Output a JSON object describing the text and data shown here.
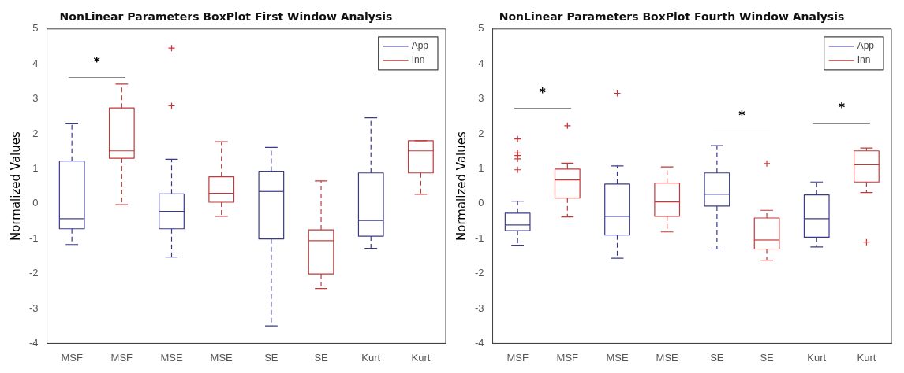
{
  "chart_data": [
    {
      "type": "box",
      "title": "NonLinear Parameters BoxPlot First Window Analysis",
      "ylabel": "Normalized Values",
      "categories": [
        "MSF",
        "MSF",
        "MSE",
        "MSE",
        "SE",
        "SE",
        "Kurt",
        "Kurt"
      ],
      "series": [
        {
          "name": "App",
          "color": "#3a3a8c",
          "boxes": [
            {
              "low": -1.17,
              "q1": -0.72,
              "median": -0.43,
              "q3": 1.22,
              "high": 2.3
            },
            null,
            {
              "low": -1.53,
              "q1": -0.72,
              "median": -0.22,
              "q3": 0.28,
              "high": 1.27,
              "outliers": [
                4.45,
                2.8
              ]
            },
            null,
            {
              "low": -3.5,
              "q1": -1.01,
              "median": 0.35,
              "q3": 0.93,
              "high": 1.61
            },
            null,
            {
              "low": -1.28,
              "q1": -0.93,
              "median": -0.48,
              "q3": 0.88,
              "high": 2.46
            },
            null
          ]
        },
        {
          "name": "Inn",
          "color": "#c03a3a",
          "boxes": [
            null,
            {
              "low": -0.03,
              "q1": 1.3,
              "median": 1.51,
              "q3": 2.74,
              "high": 3.42
            },
            null,
            {
              "low": -0.36,
              "q1": 0.04,
              "median": 0.3,
              "q3": 0.77,
              "high": 1.77
            },
            null,
            {
              "low": -2.43,
              "q1": -2.01,
              "median": -1.06,
              "q3": -0.75,
              "high": 0.65
            },
            null,
            {
              "low": 0.27,
              "q1": 0.88,
              "median": 1.51,
              "q3": 1.8,
              "high": 1.8
            }
          ]
        }
      ],
      "annotations": [
        "*"
      ],
      "ylim": [
        -4,
        5
      ],
      "yticks": [
        -4,
        -3,
        -2,
        -1,
        0,
        1,
        2,
        3,
        4,
        5
      ],
      "grid": false,
      "legend": "top right"
    },
    {
      "type": "box",
      "title": "NonLinear Parameters BoxPlot Fourth Window Analysis",
      "ylabel": "Normalized Values",
      "categories": [
        "MSF",
        "MSF",
        "MSE",
        "MSE",
        "SE",
        "SE",
        "Kurt",
        "Kurt"
      ],
      "series": [
        {
          "name": "App",
          "color": "#3a3a8c",
          "boxes": [
            {
              "low": -1.19,
              "q1": -0.77,
              "median": -0.61,
              "q3": -0.27,
              "high": 0.07,
              "outliers": [
                1.85,
                1.45,
                1.38,
                1.28,
                0.97
              ]
            },
            null,
            {
              "low": -1.56,
              "q1": -0.9,
              "median": -0.36,
              "q3": 0.56,
              "high": 1.08,
              "outliers": [
                3.16
              ]
            },
            null,
            {
              "low": -1.3,
              "q1": -0.07,
              "median": 0.27,
              "q3": 0.88,
              "high": 1.66
            },
            null,
            {
              "low": -1.24,
              "q1": -0.96,
              "median": -0.43,
              "q3": 0.25,
              "high": 0.62
            },
            null
          ]
        },
        {
          "name": "Inn",
          "color": "#c03a3a",
          "boxes": [
            null,
            {
              "low": -0.38,
              "q1": 0.16,
              "median": 0.68,
              "q3": 0.99,
              "high": 1.16,
              "outliers": [
                2.23
              ]
            },
            null,
            {
              "low": -0.81,
              "q1": -0.36,
              "median": 0.05,
              "q3": 0.59,
              "high": 1.05
            },
            null,
            {
              "low": -1.62,
              "q1": -1.3,
              "median": -1.04,
              "q3": -0.41,
              "high": -0.19,
              "outliers": [
                1.15
              ]
            },
            null,
            {
              "low": 0.32,
              "q1": 0.62,
              "median": 1.11,
              "q3": 1.51,
              "high": 1.59,
              "outliers": [
                -1.1
              ]
            }
          ]
        }
      ],
      "annotations": [
        "*",
        "*",
        "*"
      ],
      "ylim": [
        -4,
        5
      ],
      "yticks": [
        -4,
        -3,
        -2,
        -1,
        0,
        1,
        2,
        3,
        4,
        5
      ],
      "grid": false,
      "legend": "top right"
    }
  ]
}
